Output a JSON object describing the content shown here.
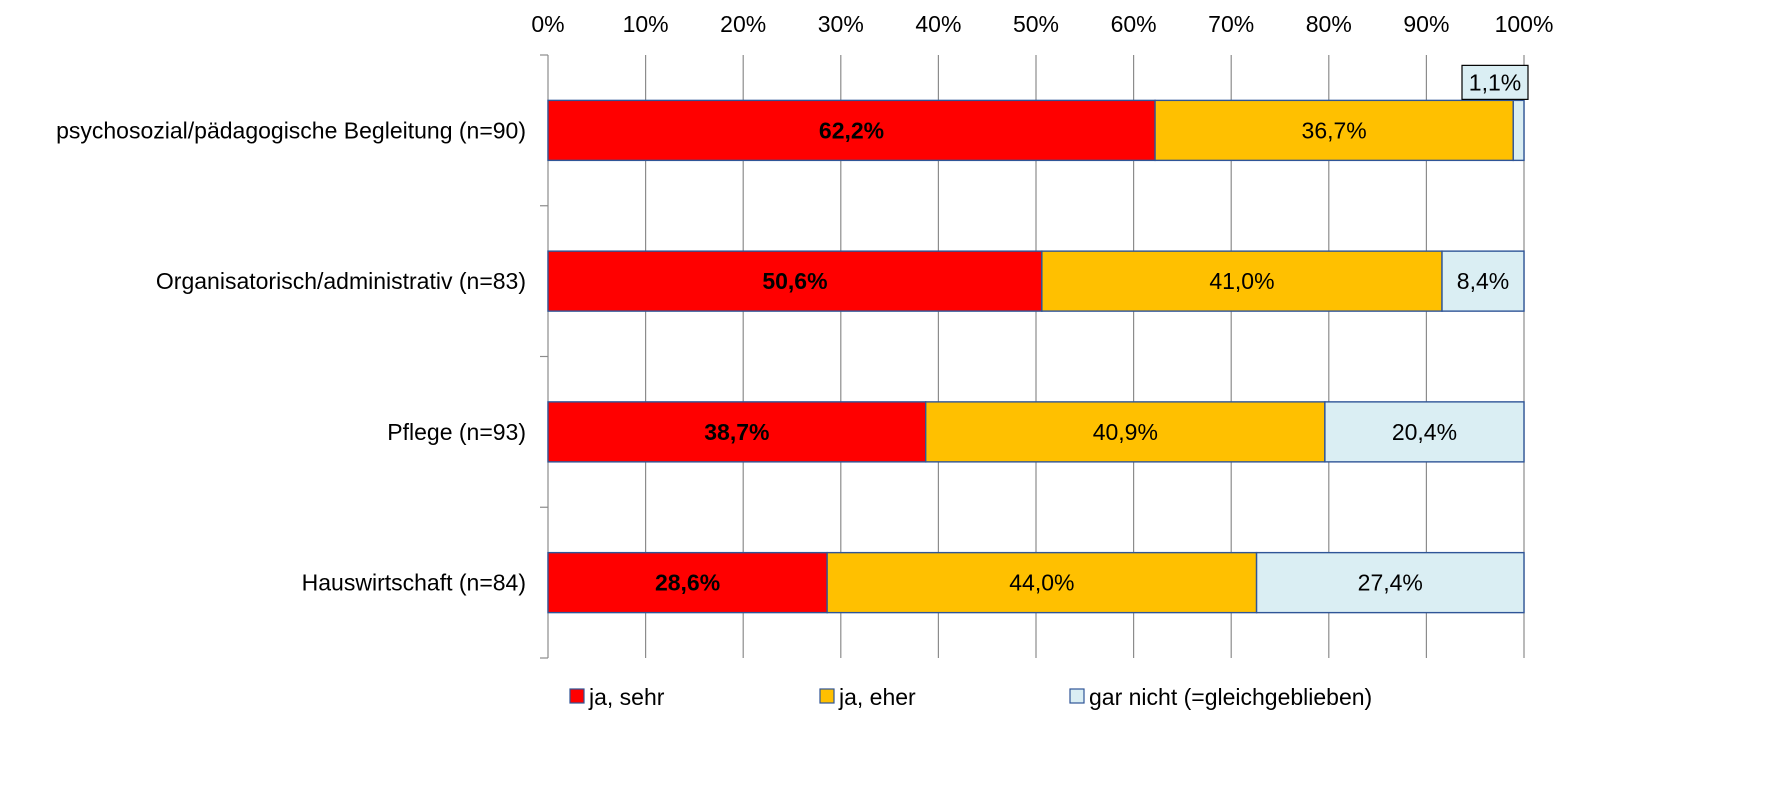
{
  "chart_data": {
    "type": "bar",
    "orientation": "horizontal",
    "stacked": true,
    "x_range": [
      0,
      100
    ],
    "x_ticks": [
      "0%",
      "10%",
      "20%",
      "30%",
      "40%",
      "50%",
      "60%",
      "70%",
      "80%",
      "90%",
      "100%"
    ],
    "x_axis_position": "top",
    "grid": true,
    "legend_position": "bottom",
    "categories": [
      "psychosozial/pädagogische Begleitung (n=90)",
      "Organisatorisch/administrativ (n=83)",
      "Pflege (n=93)",
      "Hauswirtschaft (n=84)"
    ],
    "series": [
      {
        "name": "ja, sehr",
        "color": "#FF0000",
        "label_bold": true,
        "values": [
          62.2,
          50.6,
          38.7,
          28.6
        ],
        "labels": [
          "62,2%",
          "50,6%",
          "38,7%",
          "28,6%"
        ]
      },
      {
        "name": "ja, eher",
        "color": "#FFC000",
        "label_bold": false,
        "values": [
          36.7,
          41.0,
          40.9,
          44.0
        ],
        "labels": [
          "36,7%",
          "41,0%",
          "40,9%",
          "44,0%"
        ]
      },
      {
        "name": "gar nicht (=gleichgeblieben)",
        "color": "#DAEEF3",
        "label_bold": false,
        "values": [
          1.1,
          8.4,
          20.4,
          27.4
        ],
        "labels": [
          "1,1%",
          "8,4%",
          "20,4%",
          "27,4%"
        ]
      }
    ]
  }
}
